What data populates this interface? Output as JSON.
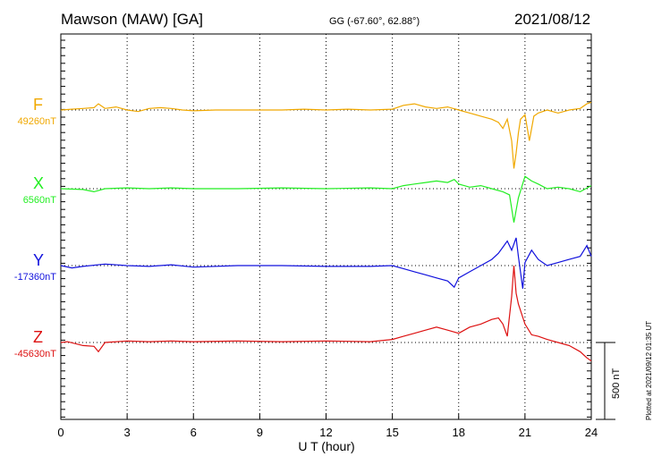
{
  "header": {
    "station": "Mawson (MAW)  [GA]",
    "coords": "GG (-67.60°,  62.88°)",
    "date": "2021/08/12"
  },
  "footer": {
    "plotted": "Plotted at 2021/09/12 01:35 UT"
  },
  "scale": {
    "label": "500 nT",
    "value_nT": 500
  },
  "chart_data": {
    "type": "line",
    "xlabel": "U T (hour)",
    "xlim": [
      0,
      24
    ],
    "xticks": [
      "0",
      "3",
      "6",
      "9",
      "12",
      "15",
      "18",
      "21",
      "24"
    ],
    "grid": true,
    "series": [
      {
        "name": "F",
        "baseline_label": "49260nT",
        "baseline_nT": 49260,
        "color": "#f0a800",
        "x": [
          0,
          0.5,
          1,
          1.5,
          1.7,
          2,
          2.5,
          3,
          3.5,
          4,
          4.5,
          5,
          5.5,
          6,
          7,
          8,
          9,
          10,
          11,
          12,
          13,
          14,
          15,
          15.5,
          16,
          16.5,
          17,
          17.5,
          18,
          18.5,
          19,
          19.5,
          19.8,
          20,
          20.2,
          20.4,
          20.5,
          20.6,
          20.7,
          20.8,
          21,
          21.2,
          21.4,
          21.6,
          22,
          22.5,
          23,
          23.5,
          23.8,
          24
        ],
        "y": [
          0,
          5,
          10,
          15,
          40,
          10,
          20,
          0,
          -10,
          10,
          15,
          10,
          0,
          -5,
          0,
          0,
          0,
          0,
          5,
          0,
          5,
          0,
          5,
          30,
          40,
          20,
          10,
          20,
          0,
          -20,
          -40,
          -60,
          -80,
          -120,
          -60,
          -200,
          -380,
          -280,
          -150,
          -60,
          -30,
          -200,
          -40,
          -20,
          0,
          -20,
          0,
          10,
          40,
          50
        ]
      },
      {
        "name": "X",
        "baseline_label": "6560nT",
        "baseline_nT": 6560,
        "color": "#22ee22",
        "x": [
          0,
          1,
          1.5,
          2,
          3,
          4,
          5,
          6,
          8,
          10,
          12,
          14,
          15,
          15.5,
          16,
          16.5,
          17,
          17.5,
          17.8,
          18,
          18.5,
          19,
          19.5,
          20,
          20.3,
          20.5,
          20.7,
          21,
          21.3,
          21.6,
          22,
          22.5,
          23,
          23.5,
          24
        ],
        "y": [
          0,
          -5,
          -20,
          0,
          5,
          0,
          5,
          0,
          0,
          5,
          0,
          5,
          0,
          20,
          30,
          40,
          50,
          40,
          60,
          30,
          10,
          20,
          0,
          -20,
          -40,
          -220,
          -60,
          80,
          50,
          30,
          0,
          10,
          0,
          -20,
          20
        ]
      },
      {
        "name": "Y",
        "baseline_label": "-17360nT",
        "baseline_nT": -17360,
        "color": "#1111dd",
        "x": [
          0,
          0.5,
          1,
          2,
          3,
          4,
          5,
          6,
          8,
          10,
          12,
          14,
          15,
          15.5,
          16,
          16.5,
          17,
          17.5,
          17.8,
          18,
          18.5,
          19,
          19.5,
          19.8,
          20,
          20.2,
          20.4,
          20.6,
          20.7,
          20.9,
          21,
          21.3,
          21.6,
          22,
          22.5,
          23,
          23.5,
          23.8,
          24
        ],
        "y": [
          0,
          -15,
          -5,
          10,
          0,
          -5,
          5,
          -10,
          0,
          0,
          -5,
          -5,
          0,
          -20,
          -40,
          -60,
          -80,
          -100,
          -140,
          -80,
          -40,
          0,
          40,
          80,
          120,
          160,
          100,
          180,
          60,
          -150,
          20,
          100,
          40,
          0,
          20,
          40,
          60,
          130,
          60
        ]
      },
      {
        "name": "Z",
        "baseline_label": "-45630nT",
        "baseline_nT": -45630,
        "color": "#dd1111",
        "x": [
          0,
          0.3,
          1,
          1.5,
          1.7,
          2,
          3,
          4,
          5,
          6,
          8,
          10,
          12,
          14,
          15,
          15.5,
          16,
          16.5,
          17,
          17.5,
          18,
          18.5,
          19,
          19.5,
          19.8,
          20,
          20.2,
          20.4,
          20.5,
          20.6,
          20.7,
          21,
          21.3,
          21.6,
          22,
          22.5,
          23,
          23.5,
          23.8,
          24
        ],
        "y": [
          0,
          5,
          -20,
          -25,
          -60,
          0,
          10,
          5,
          10,
          5,
          10,
          5,
          10,
          5,
          20,
          40,
          60,
          80,
          100,
          80,
          60,
          100,
          120,
          150,
          160,
          120,
          40,
          300,
          500,
          320,
          250,
          120,
          50,
          40,
          20,
          0,
          -20,
          -60,
          -100,
          -120
        ]
      }
    ]
  }
}
